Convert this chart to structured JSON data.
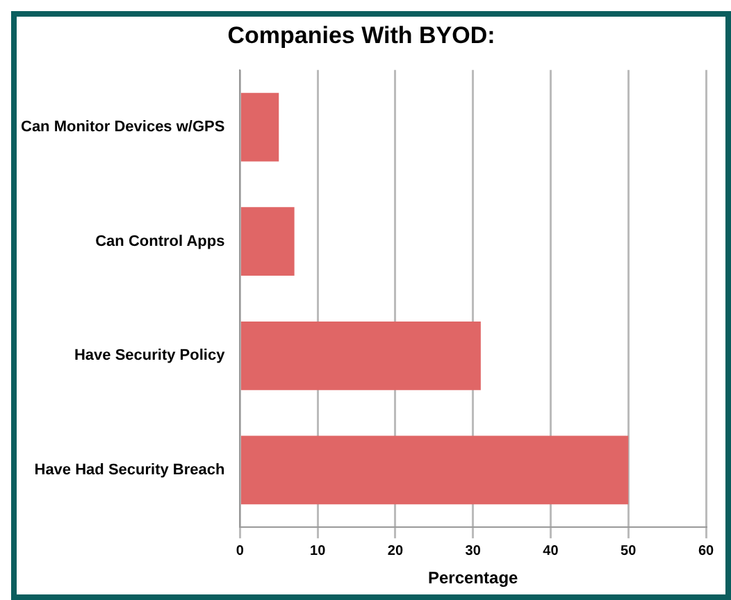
{
  "chart_data": {
    "type": "bar",
    "orientation": "horizontal",
    "title": "Companies With BYOD:",
    "xlabel": "Percentage",
    "categories": [
      "Can Monitor Devices w/GPS",
      "Can Control Apps",
      "Have Security Policy",
      "Have Had Security Breach"
    ],
    "values": [
      5,
      7,
      31,
      50
    ],
    "color": "#e06666",
    "xlim": [
      0,
      60
    ],
    "xticks": [
      0,
      10,
      20,
      30,
      40,
      50,
      60
    ],
    "grid": "x",
    "legend": false
  }
}
